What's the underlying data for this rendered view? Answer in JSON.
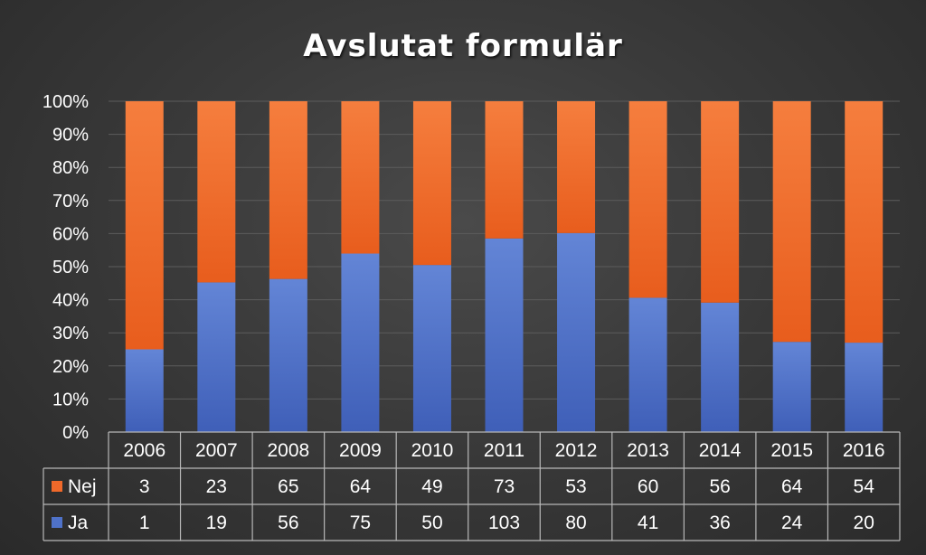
{
  "chart_data": {
    "type": "bar",
    "stacked": "percent",
    "title": "Avslutat formulär",
    "categories": [
      "2006",
      "2007",
      "2008",
      "2009",
      "2010",
      "2011",
      "2012",
      "2013",
      "2014",
      "2015",
      "2016"
    ],
    "series": [
      {
        "name": "Ja",
        "color": "#4f72c9",
        "values": [
          1,
          19,
          56,
          75,
          50,
          103,
          80,
          41,
          36,
          24,
          20
        ]
      },
      {
        "name": "Nej",
        "color": "#f0692a",
        "values": [
          3,
          23,
          65,
          64,
          49,
          73,
          53,
          60,
          56,
          64,
          54
        ]
      }
    ],
    "yticks": [
      "0%",
      "10%",
      "20%",
      "30%",
      "40%",
      "50%",
      "60%",
      "70%",
      "80%",
      "90%",
      "100%"
    ],
    "ylim": [
      0,
      100
    ],
    "grid": true,
    "legend": "data-table-left",
    "data_table": {
      "row_order": [
        "Nej",
        "Ja"
      ]
    }
  }
}
